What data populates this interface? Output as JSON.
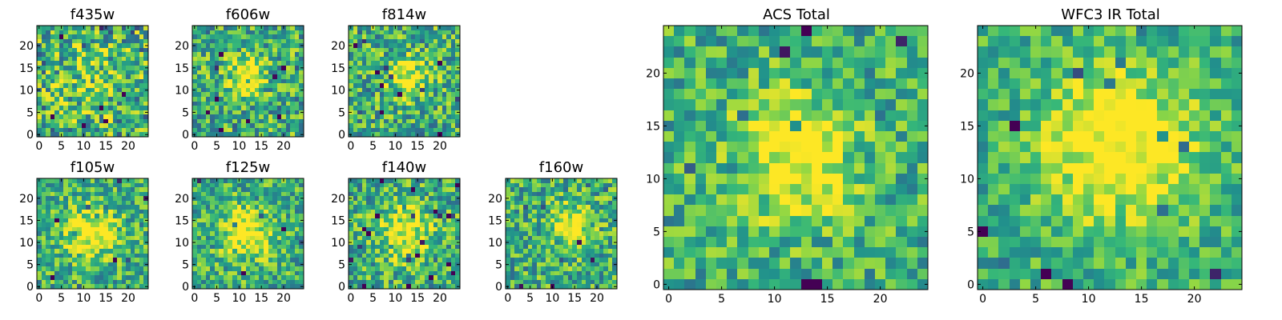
{
  "figure": {
    "colormap": "viridis",
    "colors": [
      "#440154",
      "#31688e",
      "#21918c",
      "#35b779",
      "#90d743",
      "#fde725"
    ]
  },
  "chart_data": [
    {
      "id": "f435w",
      "type": "heatmap",
      "title": "f435w",
      "grid": [
        25,
        25
      ],
      "xlim": [
        0,
        25
      ],
      "ylim": [
        0,
        25
      ],
      "xticks": [
        0,
        5,
        10,
        15,
        20
      ],
      "yticks": [
        0,
        5,
        10,
        15,
        20
      ],
      "xticklabels": [
        "0",
        "5",
        "10",
        "15",
        "20"
      ],
      "yticklabels": [
        "0",
        "5",
        "10",
        "15",
        "20"
      ],
      "seed": 11,
      "blob": [
        12,
        12,
        6,
        0.15
      ],
      "noise": 0.85
    },
    {
      "id": "f606w",
      "type": "heatmap",
      "title": "f606w",
      "grid": [
        25,
        25
      ],
      "xlim": [
        0,
        25
      ],
      "ylim": [
        0,
        25
      ],
      "xticks": [
        0,
        5,
        10,
        15,
        20
      ],
      "yticks": [
        0,
        5,
        10,
        15,
        20
      ],
      "xticklabels": [
        "0",
        "5",
        "10",
        "15",
        "20"
      ],
      "yticklabels": [
        "0",
        "5",
        "10",
        "15",
        "20"
      ],
      "seed": 23,
      "blob": [
        11,
        13,
        3,
        0.55
      ],
      "noise": 0.75
    },
    {
      "id": "f814w",
      "type": "heatmap",
      "title": "f814w",
      "grid": [
        25,
        25
      ],
      "xlim": [
        0,
        25
      ],
      "ylim": [
        0,
        25
      ],
      "xticks": [
        0,
        5,
        10,
        15,
        20
      ],
      "yticks": [
        0,
        5,
        10,
        15,
        20
      ],
      "xticklabels": [
        "0",
        "5",
        "10",
        "15",
        "20"
      ],
      "yticklabels": [
        "0",
        "5",
        "10",
        "15",
        "20"
      ],
      "seed": 37,
      "blob": [
        13,
        13,
        3,
        0.5
      ],
      "noise": 0.75
    },
    {
      "id": "f105w",
      "type": "heatmap",
      "title": "f105w",
      "grid": [
        25,
        25
      ],
      "xlim": [
        0,
        25
      ],
      "ylim": [
        0,
        25
      ],
      "xticks": [
        0,
        5,
        10,
        15,
        20
      ],
      "yticks": [
        0,
        5,
        10,
        15,
        20
      ],
      "xticklabels": [
        "0",
        "5",
        "10",
        "15",
        "20"
      ],
      "yticklabels": [
        "0",
        "5",
        "10",
        "15",
        "20"
      ],
      "seed": 41,
      "blob": [
        12,
        12,
        4,
        0.55
      ],
      "noise": 0.65
    },
    {
      "id": "f125w",
      "type": "heatmap",
      "title": "f125w",
      "grid": [
        25,
        25
      ],
      "xlim": [
        0,
        25
      ],
      "ylim": [
        0,
        25
      ],
      "xticks": [
        0,
        5,
        10,
        15,
        20
      ],
      "yticks": [
        0,
        5,
        10,
        15,
        20
      ],
      "xticklabels": [
        "0",
        "5",
        "10",
        "15",
        "20"
      ],
      "yticklabels": [
        "0",
        "5",
        "10",
        "15",
        "20"
      ],
      "seed": 53,
      "blob": [
        12,
        12,
        4,
        0.55
      ],
      "noise": 0.65
    },
    {
      "id": "f140w",
      "type": "heatmap",
      "title": "f140w",
      "grid": [
        25,
        25
      ],
      "xlim": [
        0,
        25
      ],
      "ylim": [
        0,
        25
      ],
      "xticks": [
        0,
        5,
        10,
        15,
        20
      ],
      "yticks": [
        0,
        5,
        10,
        15,
        20
      ],
      "xticklabels": [
        "0",
        "5",
        "10",
        "15",
        "20"
      ],
      "yticklabels": [
        "0",
        "5",
        "10",
        "15",
        "20"
      ],
      "seed": 67,
      "blob": [
        12,
        12,
        4,
        0.5
      ],
      "noise": 0.7
    },
    {
      "id": "f160w",
      "type": "heatmap",
      "title": "f160w",
      "grid": [
        25,
        25
      ],
      "xlim": [
        0,
        25
      ],
      "ylim": [
        0,
        25
      ],
      "xticks": [
        0,
        5,
        10,
        15,
        20
      ],
      "yticks": [
        0,
        5,
        10,
        15,
        20
      ],
      "xticklabels": [
        "0",
        "5",
        "10",
        "15",
        "20"
      ],
      "yticklabels": [
        "0",
        "5",
        "10",
        "15",
        "20"
      ],
      "seed": 79,
      "blob": [
        14,
        14,
        3,
        0.55
      ],
      "noise": 0.7
    },
    {
      "id": "acs-total",
      "type": "heatmap",
      "title": "ACS Total",
      "grid": [
        25,
        25
      ],
      "xlim": [
        0,
        25
      ],
      "ylim": [
        0,
        25
      ],
      "xticks": [
        0,
        5,
        10,
        15,
        20
      ],
      "yticks": [
        0,
        5,
        10,
        15,
        20
      ],
      "xticklabels": [
        "0",
        "5",
        "10",
        "15",
        "20"
      ],
      "yticklabels": [
        "0",
        "5",
        "10",
        "15",
        "20"
      ],
      "seed": 97,
      "blob": [
        12,
        12,
        4,
        0.55
      ],
      "noise": 0.6
    },
    {
      "id": "wfc3-ir-total",
      "type": "heatmap",
      "title": "WFC3 IR Total",
      "grid": [
        25,
        25
      ],
      "xlim": [
        0,
        25
      ],
      "ylim": [
        0,
        25
      ],
      "xticks": [
        0,
        5,
        10,
        15,
        20
      ],
      "yticks": [
        0,
        5,
        10,
        15,
        20
      ],
      "xticklabels": [
        "0",
        "5",
        "10",
        "15",
        "20"
      ],
      "yticklabels": [
        "0",
        "5",
        "10",
        "15",
        "20"
      ],
      "seed": 113,
      "blob": [
        13,
        13,
        5,
        0.6
      ],
      "noise": 0.5
    }
  ]
}
